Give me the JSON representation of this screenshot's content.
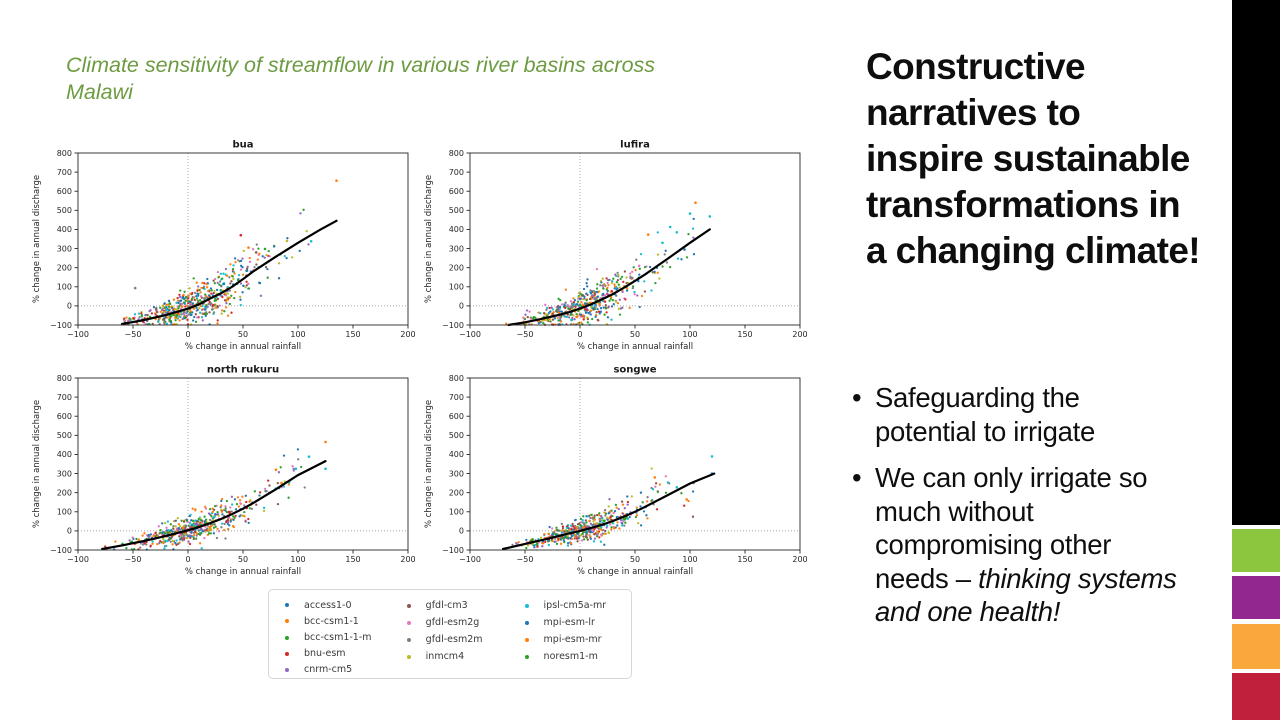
{
  "slide_title": {
    "lines": [
      "Climate sensitivity of streamflow in various river basins across",
      "Malawi"
    ],
    "color": "#6d9b41"
  },
  "right_panel": {
    "heading": "Constructive narratives to inspire sustainable transformations in a changing climate!",
    "bullets": [
      {
        "segments": [
          {
            "text": "Safeguarding the potential to irrigate",
            "italic": false
          }
        ]
      },
      {
        "segments": [
          {
            "text": "We can only irrigate so much without compromising other needs – ",
            "italic": false
          },
          {
            "text": "thinking systems and one health!",
            "italic": true
          }
        ]
      }
    ]
  },
  "side_strip": {
    "bar_color": "#000000",
    "squares": [
      {
        "name": "green",
        "color": "#8cc63f"
      },
      {
        "name": "purple",
        "color": "#92278f"
      },
      {
        "name": "orange",
        "color": "#f9a83c"
      },
      {
        "name": "red",
        "color": "#c0203a"
      }
    ]
  },
  "models": [
    {
      "name": "access1-0",
      "color": "#1f77b4"
    },
    {
      "name": "bcc-csm1-1",
      "color": "#ff7f0e"
    },
    {
      "name": "bcc-csm1-1-m",
      "color": "#2ca02c"
    },
    {
      "name": "bnu-esm",
      "color": "#d62728"
    },
    {
      "name": "cnrm-cm5",
      "color": "#9467bd"
    },
    {
      "name": "gfdl-cm3",
      "color": "#8c564b"
    },
    {
      "name": "gfdl-esm2g",
      "color": "#e377c2"
    },
    {
      "name": "gfdl-esm2m",
      "color": "#7f7f7f"
    },
    {
      "name": "inmcm4",
      "color": "#bcbd22"
    },
    {
      "name": "ipsl-cm5a-mr",
      "color": "#17becf"
    },
    {
      "name": "mpi-esm-lr",
      "color": "#1f77b4"
    },
    {
      "name": "mpi-esm-mr",
      "color": "#ff7f0e"
    },
    {
      "name": "noresm1-m",
      "color": "#2ca02c"
    }
  ],
  "legend": {
    "columns": [
      [
        0,
        1,
        2,
        3,
        4
      ],
      [
        5,
        6,
        7,
        8
      ],
      [
        9,
        10,
        11,
        12
      ]
    ]
  },
  "chart_data": [
    {
      "type": "scatter",
      "title": "bua",
      "xlabel": "% change in annual rainfall",
      "ylabel": "% change in annual discharge",
      "xlim": [
        -100,
        200
      ],
      "ylim": [
        -100,
        800
      ],
      "xticks": [
        -100,
        -50,
        0,
        50,
        100,
        150,
        200
      ],
      "yticks": [
        -100,
        0,
        100,
        200,
        300,
        400,
        500,
        600,
        700,
        800
      ],
      "ref_lines": {
        "x": 0,
        "y": 0
      },
      "grid": false,
      "fit_curve": [
        [
          -60,
          -95
        ],
        [
          -40,
          -74
        ],
        [
          -20,
          -48
        ],
        [
          0,
          -14
        ],
        [
          10,
          8
        ],
        [
          20,
          38
        ],
        [
          30,
          66
        ],
        [
          40,
          100
        ],
        [
          50,
          140
        ],
        [
          60,
          183
        ],
        [
          80,
          258
        ],
        [
          100,
          330
        ],
        [
          120,
          398
        ],
        [
          135,
          445
        ]
      ],
      "outliers": [
        [
          135,
          655,
          1
        ],
        [
          48,
          370,
          3
        ],
        [
          90,
          340,
          8
        ],
        [
          112,
          338,
          9
        ],
        [
          70,
          298,
          2
        ],
        [
          -48,
          93,
          7
        ],
        [
          55,
          305,
          1
        ],
        [
          62,
          280,
          5
        ]
      ],
      "scatter": {
        "seed": 11,
        "n": 560,
        "x_mean": 5,
        "x_sd": 27,
        "x_min": -60,
        "x_max": 112,
        "noise_base": 12,
        "noise_slope": 0.55,
        "noise_bias": 8,
        "tail_prob": 0.05
      }
    },
    {
      "type": "scatter",
      "title": "lufira",
      "xlabel": "% change in annual rainfall",
      "ylabel": "% change in annual discharge",
      "xlim": [
        -100,
        200
      ],
      "ylim": [
        -100,
        800
      ],
      "xticks": [
        -100,
        -50,
        0,
        50,
        100,
        150,
        200
      ],
      "yticks": [
        -100,
        0,
        100,
        200,
        300,
        400,
        500,
        600,
        700,
        800
      ],
      "ref_lines": {
        "x": 0,
        "y": 0
      },
      "grid": false,
      "fit_curve": [
        [
          -65,
          -100
        ],
        [
          -50,
          -86
        ],
        [
          -35,
          -68
        ],
        [
          -20,
          -48
        ],
        [
          -10,
          -33
        ],
        [
          0,
          -14
        ],
        [
          10,
          8
        ],
        [
          20,
          34
        ],
        [
          30,
          62
        ],
        [
          40,
          95
        ],
        [
          50,
          130
        ],
        [
          60,
          168
        ],
        [
          80,
          248
        ],
        [
          100,
          330
        ],
        [
          118,
          400
        ]
      ],
      "outliers": [
        [
          105,
          540,
          1
        ],
        [
          100,
          483,
          9
        ],
        [
          118,
          468,
          9
        ],
        [
          82,
          413,
          9
        ],
        [
          88,
          385,
          9
        ],
        [
          62,
          373,
          1
        ],
        [
          75,
          330,
          9
        ],
        [
          95,
          295,
          0
        ]
      ],
      "scatter": {
        "seed": 22,
        "n": 520,
        "x_mean": 3,
        "x_sd": 26,
        "x_min": -75,
        "x_max": 105,
        "noise_base": 10,
        "noise_slope": 0.45,
        "noise_bias": 4,
        "tail_prob": 0.04
      }
    },
    {
      "type": "scatter",
      "title": "north rukuru",
      "xlabel": "% change in annual rainfall",
      "ylabel": "% change in annual discharge",
      "xlim": [
        -100,
        200
      ],
      "ylim": [
        -100,
        800
      ],
      "xticks": [
        -100,
        -50,
        0,
        50,
        100,
        150,
        200
      ],
      "yticks": [
        -100,
        0,
        100,
        200,
        300,
        400,
        500,
        600,
        700,
        800
      ],
      "ref_lines": {
        "x": 0,
        "y": 0
      },
      "grid": false,
      "fit_curve": [
        [
          -78,
          -95
        ],
        [
          -60,
          -76
        ],
        [
          -40,
          -53
        ],
        [
          -20,
          -26
        ],
        [
          0,
          3
        ],
        [
          10,
          20
        ],
        [
          20,
          40
        ],
        [
          30,
          62
        ],
        [
          40,
          88
        ],
        [
          50,
          116
        ],
        [
          60,
          148
        ],
        [
          80,
          218
        ],
        [
          100,
          292
        ],
        [
          125,
          365
        ]
      ],
      "outliers": [
        [
          125,
          465,
          1
        ],
        [
          110,
          388,
          9
        ],
        [
          98,
          325,
          9
        ],
        [
          80,
          320,
          1
        ],
        [
          125,
          325,
          9
        ],
        [
          92,
          255,
          9
        ],
        [
          85,
          250,
          1
        ]
      ],
      "scatter": {
        "seed": 33,
        "n": 520,
        "x_mean": 2,
        "x_sd": 27,
        "x_min": -78,
        "x_max": 110,
        "noise_base": 10,
        "noise_slope": 0.32,
        "noise_bias": 3,
        "tail_prob": 0.05
      }
    },
    {
      "type": "scatter",
      "title": "songwe",
      "xlabel": "% change in annual rainfall",
      "ylabel": "% change in annual discharge",
      "xlim": [
        -100,
        200
      ],
      "ylim": [
        -100,
        800
      ],
      "xticks": [
        -100,
        -50,
        0,
        50,
        100,
        150,
        200
      ],
      "yticks": [
        -100,
        0,
        100,
        200,
        300,
        400,
        500,
        600,
        700,
        800
      ],
      "ref_lines": {
        "x": 0,
        "y": 0
      },
      "grid": false,
      "fit_curve": [
        [
          -70,
          -95
        ],
        [
          -50,
          -68
        ],
        [
          -30,
          -42
        ],
        [
          -10,
          -13
        ],
        [
          0,
          0
        ],
        [
          10,
          15
        ],
        [
          20,
          32
        ],
        [
          30,
          52
        ],
        [
          40,
          75
        ],
        [
          50,
          100
        ],
        [
          60,
          128
        ],
        [
          80,
          188
        ],
        [
          100,
          248
        ],
        [
          122,
          300
        ]
      ],
      "outliers": [
        [
          120,
          390,
          9
        ],
        [
          68,
          280,
          1
        ],
        [
          80,
          253,
          9
        ],
        [
          120,
          300,
          0
        ],
        [
          97,
          165,
          1
        ],
        [
          88,
          228,
          9
        ]
      ],
      "scatter": {
        "seed": 44,
        "n": 520,
        "x_mean": 2,
        "x_sd": 26,
        "x_min": -70,
        "x_max": 105,
        "noise_base": 9,
        "noise_slope": 0.28,
        "noise_bias": 2,
        "tail_prob": 0.04
      }
    }
  ]
}
